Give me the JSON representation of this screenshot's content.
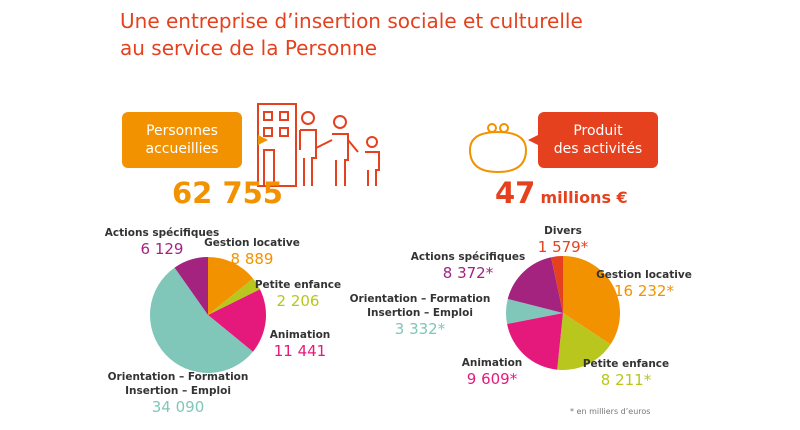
{
  "header": {
    "title": "Une entreprise d’insertion sociale et culturelle\nau service de la Personne"
  },
  "stats": [
    {
      "label": "Personnes\naccueillies",
      "value": 62755,
      "value_label": "62 755"
    },
    {
      "label": "Produit\ndes activités",
      "value": 47,
      "unit": "millions €"
    }
  ],
  "chart_data": [
    {
      "type": "pie",
      "categories": [
        "Gestion locative",
        "Petite enfance",
        "Animation",
        "Orientation – Formation\nInsertion – Emploi",
        "Actions spécifiques"
      ],
      "values": [
        8889,
        2206,
        11441,
        34090,
        6129
      ],
      "value_labels": [
        "8 889",
        "2 206",
        "11 441",
        "34 090",
        "6 129"
      ],
      "colors": [
        "#f39200",
        "#b8c61e",
        "#e5197b",
        "#80c6b9",
        "#a3237f"
      ]
    },
    {
      "type": "pie",
      "categories": [
        "Gestion locative",
        "Petite enfance",
        "Animation",
        "Orientation – Formation\nInsertion – Emploi",
        "Actions spécifiques",
        "Divers"
      ],
      "values": [
        16232,
        8211,
        9609,
        3332,
        8372,
        1579
      ],
      "value_labels": [
        "16 232*",
        "8 211*",
        "9 609*",
        "3 332*",
        "8 372*",
        "1 579*"
      ],
      "colors": [
        "#f39200",
        "#b8c61e",
        "#e5197b",
        "#80c6b9",
        "#a3237f",
        "#e6411e"
      ],
      "note": "* en milliers d’euros"
    }
  ]
}
